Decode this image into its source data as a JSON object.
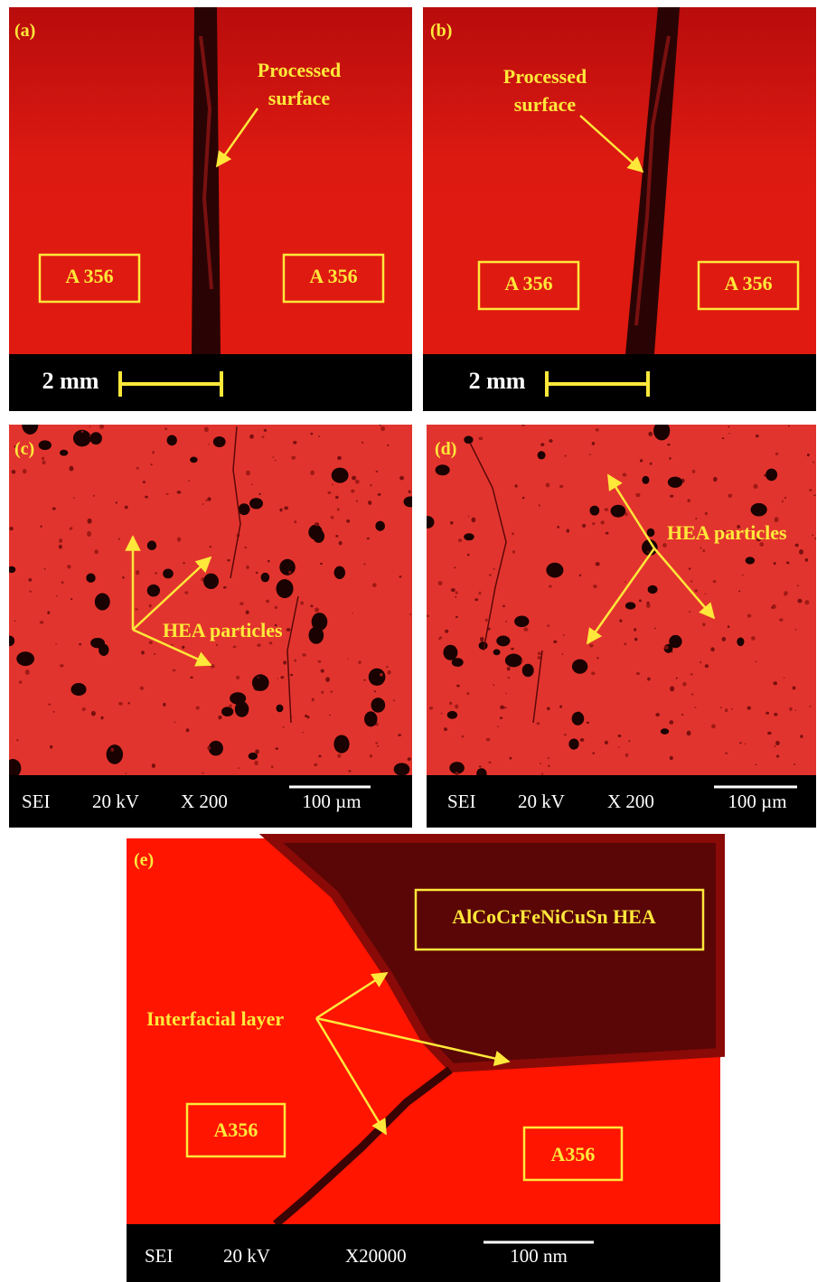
{
  "panels": [
    {
      "label": "(a)",
      "annotation": [
        "Processed",
        "surface"
      ],
      "regions": [
        "A 356",
        "A 356"
      ],
      "scale_bar": "2 mm"
    },
    {
      "label": "(b)",
      "annotation": [
        "Processed",
        "surface"
      ],
      "regions": [
        "A 356",
        "A 356"
      ],
      "scale_bar": "2 mm"
    },
    {
      "label": "(c)",
      "annotation": "HEA particles",
      "footer": [
        "SEI",
        "20 kV",
        "X 200"
      ],
      "scale_bar": "100 µm"
    },
    {
      "label": "(d)",
      "annotation": "HEA particles",
      "footer": [
        "SEI",
        "20 kV",
        "X 200"
      ],
      "scale_bar": "100 µm"
    },
    {
      "label": "(e)",
      "annotation": "Interfacial layer",
      "regions": [
        "AlCoCrFeNiCuSn HEA",
        "A356",
        "A356"
      ],
      "footer": [
        "SEI",
        "20 kV",
        "X20000"
      ],
      "scale_bar": "100 nm"
    }
  ]
}
